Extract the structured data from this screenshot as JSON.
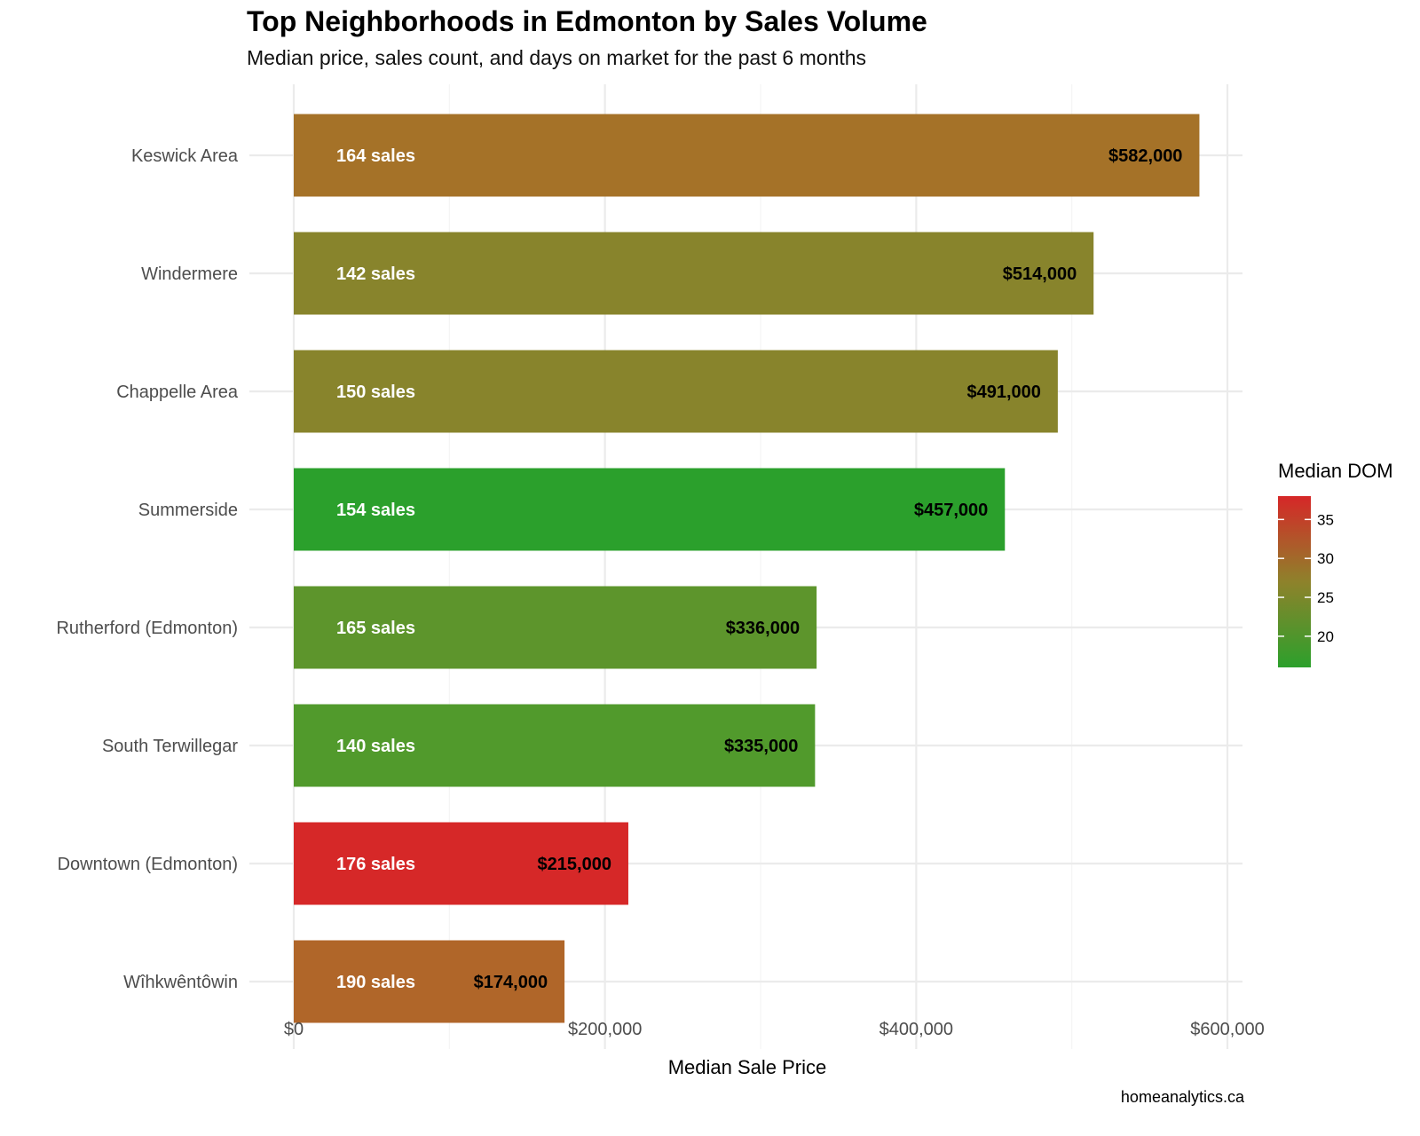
{
  "title": "Top Neighborhoods in Edmonton by Sales Volume",
  "subtitle": "Median price, sales count, and days on market for the past 6 months",
  "caption": "homeanalytics.ca",
  "chart_data": {
    "type": "bar",
    "orientation": "horizontal",
    "title": "Top Neighborhoods in Edmonton by Sales Volume",
    "subtitle": "Median price, sales count, and days on market for the past 6 months",
    "xlabel": "Median Sale Price",
    "ylabel": "",
    "xlim": [
      0,
      600000
    ],
    "x_ticks": [
      0,
      200000,
      400000,
      600000
    ],
    "x_tick_labels": [
      "$0",
      "$200,000",
      "$400,000",
      "$600,000"
    ],
    "grid": true,
    "categories": [
      "Keswick Area",
      "Windermere",
      "Chappelle Area",
      "Summerside",
      "Rutherford (Edmonton)",
      "South Terwillegar",
      "Downtown (Edmonton)",
      "Wîhkwêntôwin"
    ],
    "values": [
      582000,
      514000,
      491000,
      457000,
      336000,
      335000,
      215000,
      174000
    ],
    "value_labels": [
      "$582,000",
      "$514,000",
      "$491,000",
      "$457,000",
      "$336,000",
      "$335,000",
      "$215,000",
      "$174,000"
    ],
    "sales": [
      164,
      142,
      150,
      154,
      165,
      140,
      176,
      190
    ],
    "sales_labels": [
      "164 sales",
      "142 sales",
      "150 sales",
      "154 sales",
      "165 sales",
      "140 sales",
      "176 sales",
      "190 sales"
    ],
    "median_dom": [
      28,
      25,
      25,
      17,
      21,
      20,
      38,
      31
    ],
    "bar_colors": [
      "#A57228",
      "#88842C",
      "#88842C",
      "#2BA02C",
      "#5D952C",
      "#519A2C",
      "#D62828",
      "#B06629"
    ],
    "legend": {
      "title": "Median DOM",
      "position": "right",
      "range": [
        16,
        38
      ],
      "ticks": [
        20,
        25,
        30,
        35
      ],
      "tick_labels": [
        "20",
        "25",
        "30",
        "35"
      ],
      "low_color": "#2CA02C",
      "high_color": "#D62728"
    },
    "caption": "homeanalytics.ca"
  }
}
